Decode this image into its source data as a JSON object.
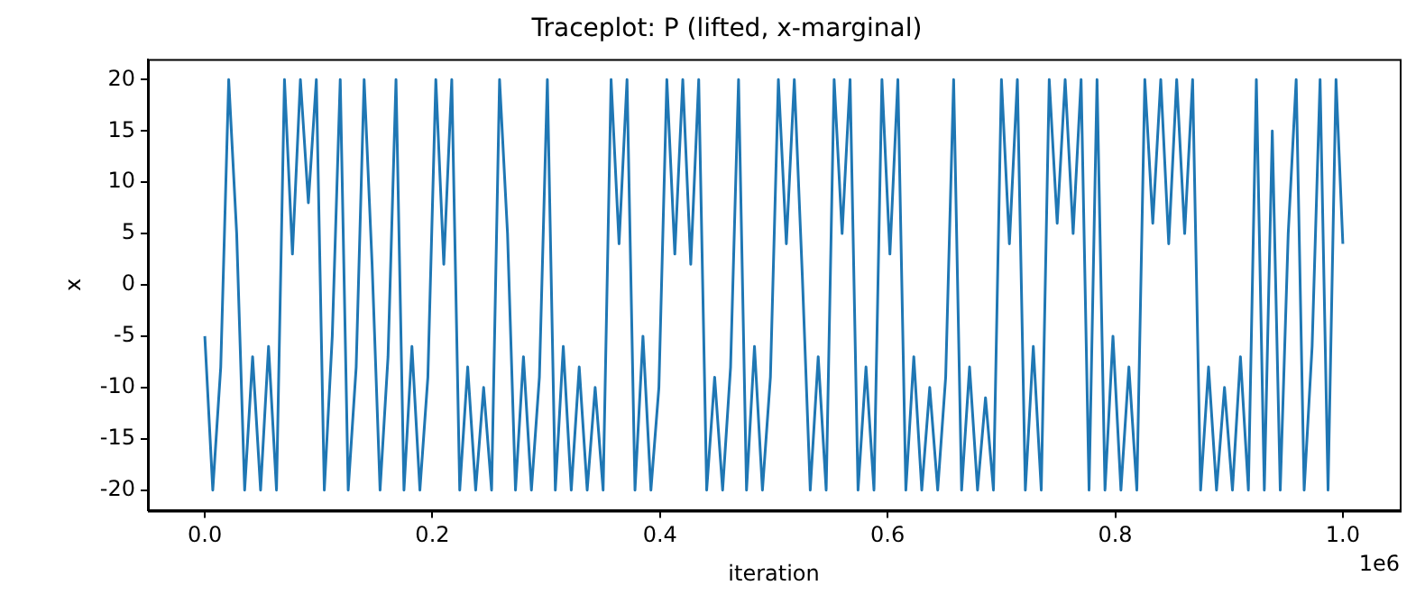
{
  "chart_data": {
    "type": "line",
    "title": "Traceplot: P (lifted, x-marginal)",
    "xlabel": "iteration",
    "ylabel": "x",
    "annotations": [
      "1e6"
    ],
    "x": [
      0,
      0.007,
      0.014,
      0.021,
      0.028,
      0.035,
      0.042,
      0.049,
      0.056,
      0.063,
      0.07,
      0.077,
      0.084,
      0.091,
      0.098,
      0.105,
      0.112,
      0.119,
      0.126,
      0.133,
      0.14,
      0.147,
      0.154,
      0.161,
      0.168,
      0.175,
      0.182,
      0.189,
      0.196,
      0.203,
      0.21,
      0.217,
      0.224,
      0.231,
      0.238,
      0.245,
      0.252,
      0.259,
      0.266,
      0.273,
      0.28,
      0.287,
      0.294,
      0.301,
      0.308,
      0.315,
      0.322,
      0.329,
      0.336,
      0.343,
      0.35,
      0.357,
      0.364,
      0.371,
      0.378,
      0.385,
      0.392,
      0.399,
      0.406,
      0.413,
      0.42,
      0.427,
      0.434,
      0.441,
      0.448,
      0.455,
      0.462,
      0.469,
      0.476,
      0.483,
      0.49,
      0.497,
      0.504,
      0.511,
      0.518,
      0.525,
      0.532,
      0.539,
      0.546,
      0.553,
      0.56,
      0.567,
      0.574,
      0.581,
      0.588,
      0.595,
      0.602,
      0.609,
      0.616,
      0.623,
      0.63,
      0.637,
      0.644,
      0.651,
      0.658,
      0.665,
      0.672,
      0.679,
      0.686,
      0.693,
      0.7,
      0.707,
      0.714,
      0.721,
      0.728,
      0.735,
      0.742,
      0.749,
      0.756,
      0.763,
      0.77,
      0.777,
      0.784,
      0.791,
      0.798,
      0.805,
      0.812,
      0.819,
      0.826,
      0.833,
      0.84,
      0.847,
      0.854,
      0.861,
      0.868,
      0.875,
      0.882,
      0.889,
      0.896,
      0.903,
      0.91,
      0.917,
      0.924,
      0.931,
      0.938,
      0.945,
      0.952,
      0.959,
      0.966,
      0.973,
      0.98,
      0.987,
      0.994,
      1.0
    ],
    "values": [
      -5,
      -20,
      -8,
      20,
      5,
      -20,
      -7,
      -20,
      -6,
      -20,
      20,
      3,
      20,
      8,
      20,
      -20,
      -5,
      20,
      -20,
      -8,
      20,
      2,
      -20,
      -7,
      20,
      -20,
      -6,
      -20,
      -9,
      20,
      2,
      20,
      -20,
      -8,
      -20,
      -10,
      -20,
      20,
      5,
      -20,
      -7,
      -20,
      -9,
      20,
      -20,
      -6,
      -20,
      -8,
      -20,
      -10,
      -20,
      20,
      4,
      20,
      -20,
      -5,
      -20,
      -10,
      20,
      3,
      20,
      2,
      20,
      -20,
      -9,
      -20,
      -8,
      20,
      -20,
      -6,
      -20,
      -9,
      20,
      4,
      20,
      1,
      -20,
      -7,
      -20,
      20,
      5,
      20,
      -20,
      -8,
      -20,
      20,
      3,
      20,
      -20,
      -7,
      -20,
      -10,
      -20,
      -9,
      20,
      -20,
      -8,
      -20,
      -11,
      -20,
      20,
      4,
      20,
      -20,
      -6,
      -20,
      20,
      6,
      20,
      5,
      20,
      -20,
      20,
      -20,
      -5,
      -20,
      -8,
      -20,
      20,
      6,
      20,
      4,
      20,
      5,
      20,
      -20,
      -8,
      -20,
      -10,
      -20,
      -7,
      -20,
      20,
      -20,
      15,
      -20,
      5,
      20,
      -20,
      -6,
      20,
      -20,
      20,
      4
    ],
    "color": "#1f77b4",
    "xlim": [
      -0.05,
      1.05
    ],
    "xticks": [
      {
        "value": 0,
        "label": "0.0"
      },
      0.2,
      0.4,
      0.6,
      0.8,
      {
        "value": 1,
        "label": "1.0"
      }
    ],
    "ylim": [
      -22,
      22
    ],
    "yticks": [
      -20,
      -15,
      -10,
      -5,
      0,
      5,
      10,
      15,
      20
    ]
  }
}
